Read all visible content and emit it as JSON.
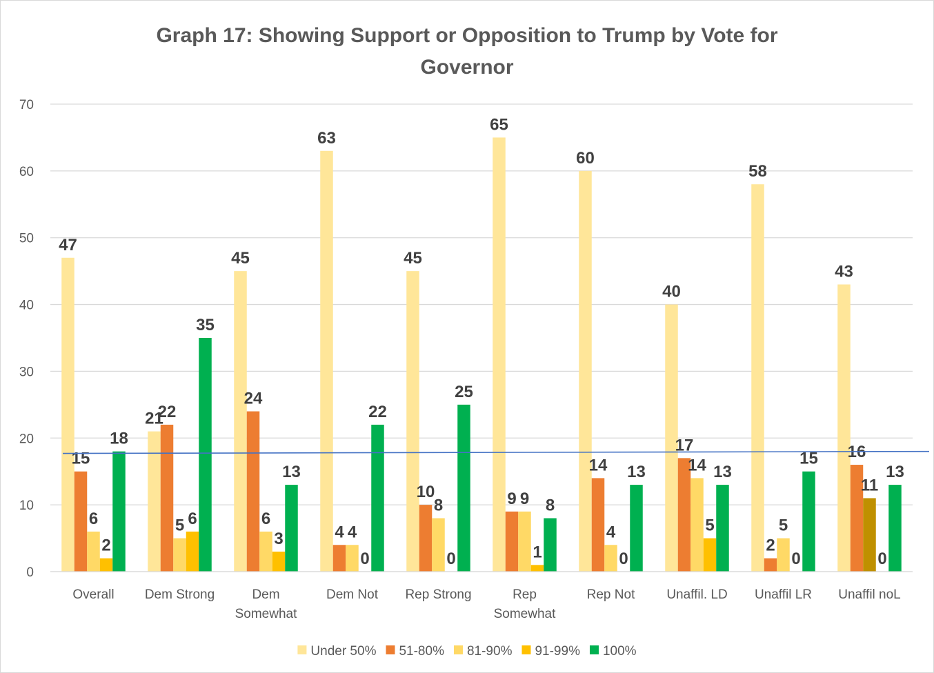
{
  "chart_data": {
    "type": "bar",
    "title": "Graph 17: Showing Support or Opposition to Trump by Vote for Governor",
    "xlabel": "",
    "ylabel": "",
    "ylim": [
      0,
      70
    ],
    "yticks": [
      0,
      10,
      20,
      30,
      40,
      50,
      60,
      70
    ],
    "grid": true,
    "legend_position": "bottom",
    "categories": [
      "Overall",
      "Dem Strong",
      "Dem Somewhat",
      "Dem Not",
      "Rep Strong",
      "Rep Somewhat",
      "Rep Not",
      "Unaffil. LD",
      "Unaffil LR",
      "Unaffil noL"
    ],
    "series": [
      {
        "name": "Under 50%",
        "color": "#FFE699",
        "values": [
          47,
          21,
          45,
          63,
          45,
          65,
          60,
          40,
          58,
          43
        ]
      },
      {
        "name": "51-80%",
        "color": "#ED7D31",
        "values": [
          15,
          22,
          24,
          4,
          10,
          9,
          14,
          17,
          2,
          16
        ]
      },
      {
        "name": "81-90%",
        "color": "#FFD966",
        "values": [
          6,
          5,
          6,
          4,
          8,
          9,
          4,
          14,
          5,
          11
        ]
      },
      {
        "name": "91-99%",
        "color": "#FFC000",
        "values": [
          2,
          6,
          3,
          0,
          0,
          1,
          0,
          5,
          0,
          0
        ]
      },
      {
        "name": "100%",
        "color": "#00B050",
        "values": [
          18,
          35,
          13,
          22,
          25,
          8,
          13,
          13,
          15,
          13
        ]
      }
    ],
    "bar_color_overrides": [
      {
        "series": 2,
        "category": 9,
        "color": "#BF9000"
      }
    ],
    "reference_line": {
      "value_start": 17.7,
      "value_end": 18.0,
      "color": "#4472C4"
    }
  }
}
